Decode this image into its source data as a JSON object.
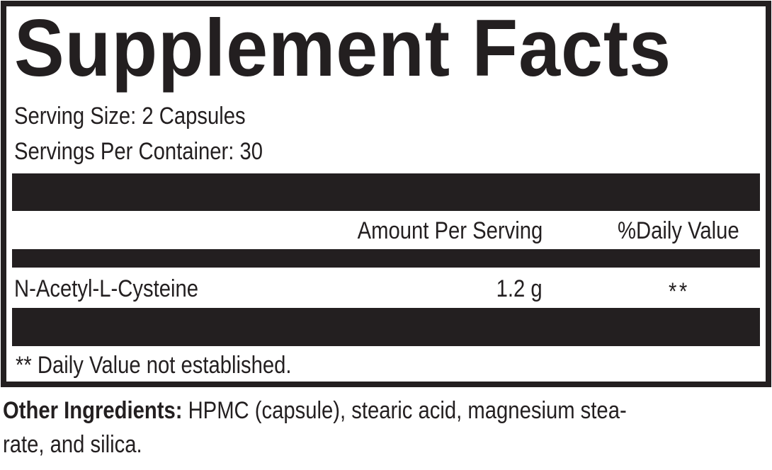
{
  "title": "Supplement Facts",
  "serving_size": "Serving Size: 2 Capsules",
  "servings_per_container": "Servings Per Container: 30",
  "columns": {
    "amount": "Amount Per Serving",
    "daily_value": "%Daily Value"
  },
  "rows": [
    {
      "name": "N-Acetyl-L-Cysteine",
      "amount": "1.2 g",
      "daily_value": "**"
    }
  ],
  "footnote": "** Daily Value not established.",
  "other_ingredients": {
    "label": "Other Ingredients:",
    "line1": " HPMC (capsule), stearic acid, magnesium stea-",
    "line2": "rate, and silica."
  },
  "colors": {
    "ink": "#231f20"
  }
}
